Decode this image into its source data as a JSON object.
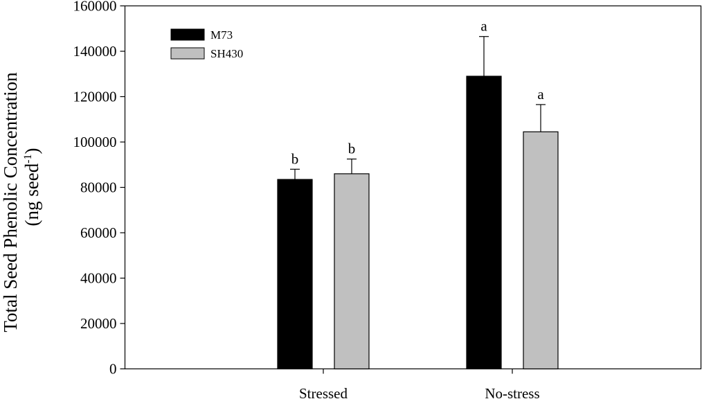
{
  "chart_data": {
    "type": "bar",
    "ylabel_line1": "Total Seed Phenolic Concentration",
    "ylabel_line2_main": "(ng seed",
    "ylabel_line2_sup": "-1",
    "ylabel_line2_end": ")",
    "xlabel": "",
    "title": "",
    "categories": [
      "Stressed",
      "No-stress"
    ],
    "ylim": [
      0,
      160000
    ],
    "yticks": [
      0,
      20000,
      40000,
      60000,
      80000,
      100000,
      120000,
      140000,
      160000
    ],
    "ytick_labels": [
      "0",
      "20000",
      "40000",
      "60000",
      "80000",
      "100000",
      "120000",
      "140000",
      "160000"
    ],
    "legend_position": "top-left",
    "series": [
      {
        "name": "M73",
        "color": "#000000",
        "values": [
          83500,
          129000
        ],
        "errors": [
          4500,
          17500
        ],
        "letters": [
          "b",
          "a"
        ]
      },
      {
        "name": "SH430",
        "color": "#c0c0c0",
        "values": [
          86000,
          104500
        ],
        "errors": [
          6500,
          12000
        ],
        "letters": [
          "b",
          "a"
        ]
      }
    ]
  }
}
